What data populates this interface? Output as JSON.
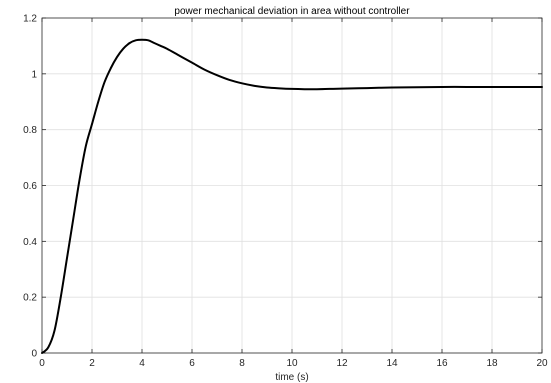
{
  "chart_data": {
    "type": "line",
    "title": "power mechanical deviation in area without controller",
    "xlabel": "time (s)",
    "ylabel": "",
    "xlim": [
      0,
      20
    ],
    "ylim": [
      0,
      1.2
    ],
    "xticks": [
      0,
      2,
      4,
      6,
      8,
      10,
      12,
      14,
      16,
      18,
      20
    ],
    "xtick_labels": [
      "0",
      "2",
      "4",
      "6",
      "8",
      "10",
      "12",
      "14",
      "16",
      "18",
      "20"
    ],
    "yticks": [
      0,
      0.2,
      0.4,
      0.6,
      0.8,
      1,
      1.2
    ],
    "ytick_labels": [
      "0",
      "0.2",
      "0.4",
      "0.6",
      "0.8",
      "1",
      "1.2"
    ],
    "grid": true,
    "series": [
      {
        "color": "#000000",
        "x": [
          0,
          0.25,
          0.5,
          0.75,
          1.0,
          1.25,
          1.5,
          1.75,
          2.0,
          2.25,
          2.5,
          2.75,
          3.0,
          3.25,
          3.5,
          3.75,
          4.0,
          4.25,
          4.5,
          4.75,
          5.0,
          5.5,
          6.0,
          6.5,
          7.0,
          7.5,
          8.0,
          8.5,
          9.0,
          9.5,
          10.0,
          10.5,
          11.0,
          11.5,
          12.0,
          13.0,
          14.0,
          15.0,
          16.0,
          17.0,
          18.0,
          19.0,
          20.0
        ],
        "y": [
          0,
          0.02,
          0.08,
          0.2,
          0.34,
          0.48,
          0.62,
          0.74,
          0.82,
          0.9,
          0.97,
          1.02,
          1.06,
          1.09,
          1.11,
          1.12,
          1.122,
          1.12,
          1.11,
          1.1,
          1.09,
          1.065,
          1.04,
          1.015,
          0.995,
          0.978,
          0.966,
          0.957,
          0.951,
          0.948,
          0.946,
          0.945,
          0.945,
          0.946,
          0.947,
          0.949,
          0.951,
          0.952,
          0.953,
          0.953,
          0.953,
          0.953,
          0.953
        ]
      }
    ]
  },
  "colors": {
    "grid": "#e0e0e0",
    "axis": "#262626",
    "line": "#000000"
  }
}
